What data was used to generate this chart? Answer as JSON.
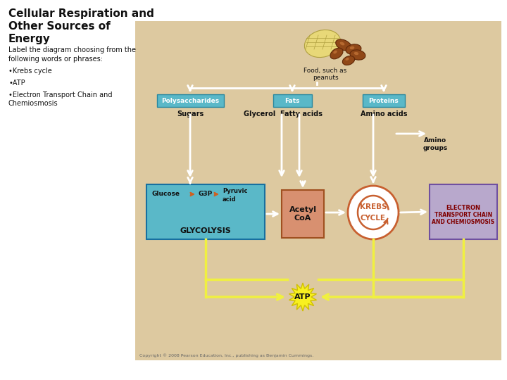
{
  "title": "Cellular Respiration and\nOther Sources of\nEnergy",
  "subtitle": "Label the diagram choosing from the\nfollowing words or phrases:",
  "bullets": [
    "•Krebs cycle",
    "•ATP",
    "•Electron Transport Chain and\nChemiosmosis"
  ],
  "bg_color": "#ffffff",
  "diagram_bg": "#ddc9a0",
  "box_blue": "#5ab8c8",
  "box_orange": "#d89070",
  "box_purple": "#b8a8cc",
  "atp_yellow": "#f0f040",
  "arrow_white": "#ffffff",
  "krebs_orange": "#c86030",
  "text_dark": "#111111",
  "copyright": "Copyright © 2008 Pearson Education, Inc., publishing as Benjamin Cummings."
}
